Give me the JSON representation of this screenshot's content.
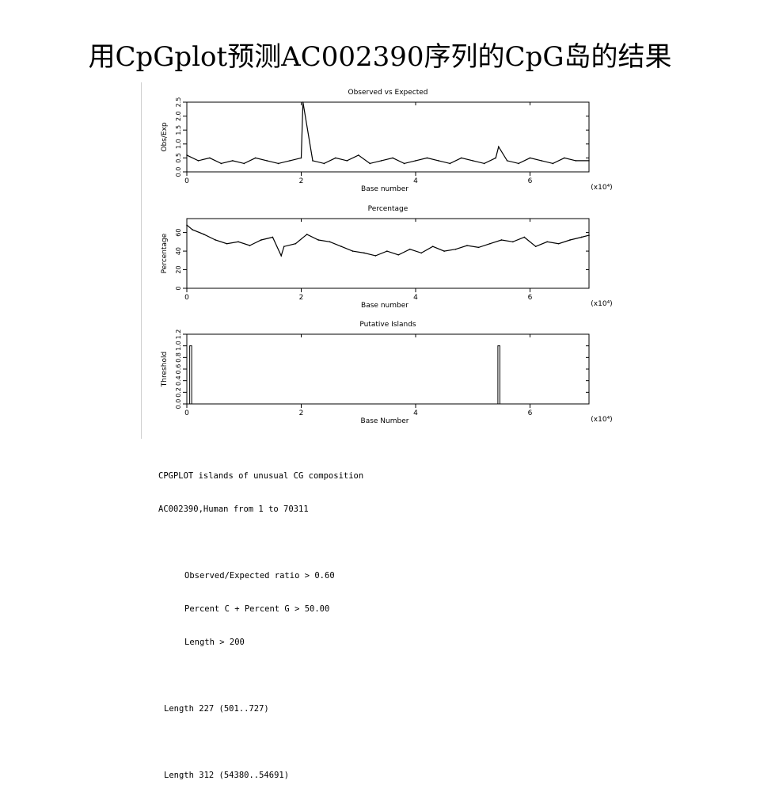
{
  "slide": {
    "title": "用CpGplot预测AC002390序列的CpG岛的结果"
  },
  "chart_data": [
    {
      "type": "line",
      "title": "Observed vs Expected",
      "xlabel": "Base number",
      "ylabel": "Obs/Exp",
      "x_multiplier": "(x10⁴)",
      "xlim": [
        0,
        70311
      ],
      "ylim": [
        0,
        2.5
      ],
      "xticks": [
        "0",
        "2",
        "4",
        "6"
      ],
      "yticks": [
        "0.0",
        "0.5",
        "1.0",
        "1.5",
        "2.0",
        "2.5"
      ],
      "x": [
        0,
        2000,
        4000,
        6000,
        8000,
        10000,
        12000,
        14000,
        16000,
        18000,
        20000,
        20300,
        22000,
        24000,
        26000,
        28000,
        30000,
        32000,
        34000,
        36000,
        38000,
        40000,
        42000,
        44000,
        46000,
        48000,
        50000,
        52000,
        54000,
        54500,
        56000,
        58000,
        60000,
        62000,
        64000,
        66000,
        68000,
        70311
      ],
      "y": [
        0.6,
        0.4,
        0.5,
        0.3,
        0.4,
        0.3,
        0.5,
        0.4,
        0.3,
        0.4,
        0.5,
        2.5,
        0.4,
        0.3,
        0.5,
        0.4,
        0.6,
        0.3,
        0.4,
        0.5,
        0.3,
        0.4,
        0.5,
        0.4,
        0.3,
        0.5,
        0.4,
        0.3,
        0.5,
        0.9,
        0.4,
        0.3,
        0.5,
        0.4,
        0.3,
        0.5,
        0.4,
        0.4
      ]
    },
    {
      "type": "line",
      "title": "Percentage",
      "xlabel": "Base number",
      "ylabel": "Percentage",
      "x_multiplier": "(x10⁴)",
      "xlim": [
        0,
        70311
      ],
      "ylim": [
        0,
        75
      ],
      "xticks": [
        "0",
        "2",
        "4",
        "6"
      ],
      "yticks": [
        "0",
        "20",
        "40",
        "60"
      ],
      "x": [
        0,
        1000,
        3000,
        5000,
        7000,
        9000,
        11000,
        13000,
        15000,
        16500,
        17000,
        19000,
        21000,
        23000,
        25000,
        27000,
        29000,
        31000,
        33000,
        35000,
        37000,
        39000,
        41000,
        43000,
        45000,
        47000,
        49000,
        51000,
        53000,
        55000,
        57000,
        59000,
        61000,
        63000,
        65000,
        67000,
        69000,
        70311
      ],
      "y": [
        68,
        63,
        58,
        52,
        48,
        50,
        46,
        52,
        55,
        35,
        45,
        48,
        58,
        52,
        50,
        45,
        40,
        38,
        35,
        40,
        36,
        42,
        38,
        45,
        40,
        42,
        46,
        44,
        48,
        52,
        50,
        55,
        45,
        50,
        48,
        52,
        55,
        57
      ]
    },
    {
      "type": "bar",
      "title": "Putative Islands",
      "xlabel": "Base Number",
      "ylabel": "Threshold",
      "x_multiplier": "(x10⁴)",
      "xlim": [
        0,
        70311
      ],
      "ylim": [
        0,
        1.2
      ],
      "xticks": [
        "0",
        "2",
        "4",
        "6"
      ],
      "yticks": [
        "0.0",
        "0.2",
        "0.4",
        "0.6",
        "0.8",
        "1.0",
        "1.2"
      ],
      "islands": [
        {
          "start": 501,
          "end": 727,
          "value": 1.0
        },
        {
          "start": 54380,
          "end": 54691,
          "value": 1.0
        }
      ]
    }
  ],
  "report": {
    "header": "CPGPLOT islands of unusual CG composition",
    "sequence": "AC002390,Human from 1 to 70311",
    "criteria": [
      "Observed/Expected ratio > 0.60",
      "Percent C + Percent G > 50.00",
      "Length > 200"
    ],
    "islands": [
      "Length 227 (501..727)",
      "Length 312 (54380..54691)"
    ]
  }
}
